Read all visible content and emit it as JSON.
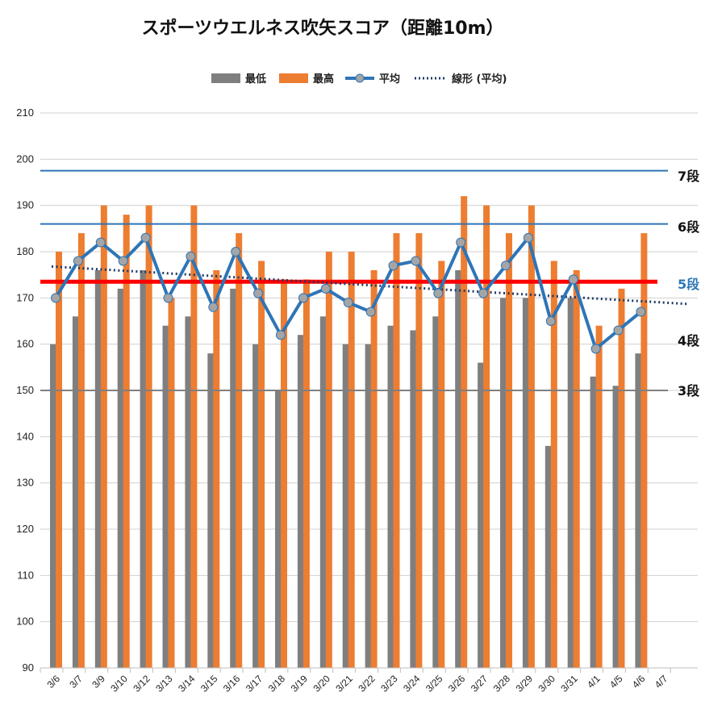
{
  "chart_data": {
    "type": "bar",
    "title": "スポーツウエルネス吹矢スコア（距離10m）",
    "xlabel": "",
    "ylabel": "",
    "ylim": [
      90,
      210
    ],
    "yticks": [
      90,
      100,
      110,
      120,
      130,
      140,
      150,
      160,
      170,
      180,
      190,
      200,
      210
    ],
    "grid": true,
    "legend_position": "top-center",
    "categories": [
      "3/6",
      "3/7",
      "3/9",
      "3/10",
      "3/12",
      "3/13",
      "3/14",
      "3/15",
      "3/16",
      "3/17",
      "3/18",
      "3/19",
      "3/20",
      "3/21",
      "3/22",
      "3/23",
      "3/24",
      "3/25",
      "3/26",
      "3/27",
      "3/28",
      "3/29",
      "3/30",
      "3/31",
      "4/1",
      "4/5",
      "4/6",
      "4/7"
    ],
    "series": [
      {
        "name": "最低",
        "kind": "bar",
        "color": "#7f7f7f",
        "values": [
          160,
          166,
          176,
          172,
          176,
          164,
          166,
          158,
          172,
          160,
          150,
          162,
          166,
          160,
          160,
          164,
          163,
          166,
          176,
          156,
          170,
          170,
          138,
          170,
          153,
          151,
          158,
          null
        ]
      },
      {
        "name": "最高",
        "kind": "bar",
        "color": "#ed7d31",
        "values": [
          180,
          184,
          190,
          188,
          190,
          170,
          190,
          176,
          184,
          178,
          174,
          174,
          180,
          180,
          176,
          184,
          184,
          178,
          192,
          190,
          184,
          190,
          178,
          176,
          164,
          172,
          184,
          null
        ]
      },
      {
        "name": "平均",
        "kind": "line",
        "color": "#2e75b6",
        "marker_color": "#a5a5a5",
        "values": [
          170,
          178,
          182,
          178,
          183,
          170,
          179,
          168,
          180,
          171,
          162,
          170,
          172,
          169,
          167,
          177,
          178,
          171,
          182,
          171,
          177,
          183,
          165,
          174,
          159,
          163,
          167,
          null
        ]
      },
      {
        "name": "線形 (平均)",
        "kind": "trendline",
        "color": "#1f3864",
        "values": [
          176.8,
          176.5,
          176.2,
          175.9,
          175.6,
          175.3,
          175.0,
          174.7,
          174.4,
          174.1,
          173.8,
          173.5,
          173.2,
          172.9,
          172.6,
          172.3,
          172.0,
          171.7,
          171.4,
          171.1,
          170.8,
          170.5,
          170.2,
          169.9,
          169.6,
          169.3,
          169.0,
          168.7
        ]
      }
    ],
    "reference_lines": [
      {
        "label": "7段",
        "value": 197.5,
        "color": "#2e75b6",
        "label_color": "#111111"
      },
      {
        "label": "6段",
        "value": 186,
        "color": "#2e75b6",
        "label_color": "#111111"
      },
      {
        "label": "5段",
        "value": 173.5,
        "color": "#ff0000",
        "label_color": "#2e75b6"
      },
      {
        "label": "4段",
        "value": null,
        "color": null,
        "label_color": "#111111"
      },
      {
        "label": "3段",
        "value": 150,
        "color": "#7f7f7f",
        "label_color": "#111111"
      }
    ]
  }
}
